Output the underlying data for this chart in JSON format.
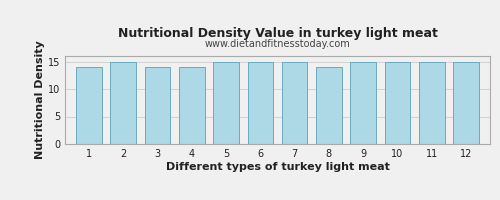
{
  "title": "Nutritional Density Value in turkey light meat",
  "subtitle": "www.dietandfitnesstoday.com",
  "xlabel": "Different types of turkey light meat",
  "ylabel": "Nutritional Density",
  "categories": [
    1,
    2,
    3,
    4,
    5,
    6,
    7,
    8,
    9,
    10,
    11,
    12
  ],
  "values": [
    14.0,
    15.0,
    14.0,
    14.0,
    15.0,
    15.0,
    15.0,
    14.0,
    15.0,
    15.0,
    15.0,
    15.0
  ],
  "bar_color": "#add8e6",
  "bar_edge_color": "#6aaac0",
  "ylim": [
    0,
    16
  ],
  "yticks": [
    0,
    5,
    10,
    15
  ],
  "background_color": "#f0f0f0",
  "grid_color": "#cccccc",
  "title_fontsize": 9,
  "subtitle_fontsize": 7,
  "label_fontsize": 8,
  "tick_fontsize": 7
}
